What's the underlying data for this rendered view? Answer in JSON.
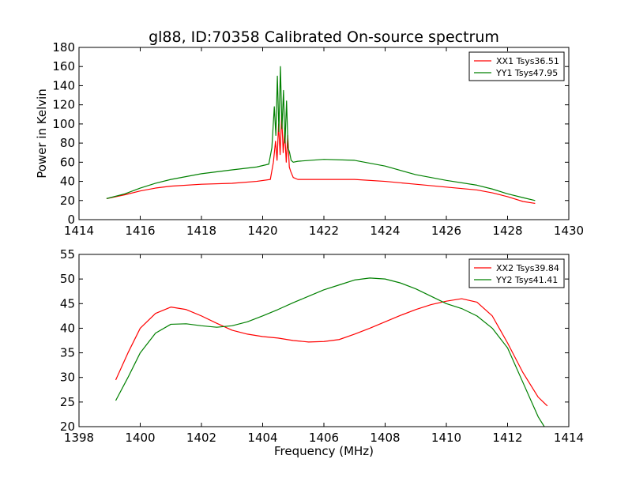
{
  "title": "gl88, ID:70358 Calibrated On-source spectrum",
  "colors": {
    "xx": "#ff0000",
    "yy": "#008000"
  },
  "chart_data": [
    {
      "type": "line",
      "ylabel": "Power in Kelvin",
      "xlabel": "",
      "xlim": [
        1414,
        1430
      ],
      "ylim": [
        0,
        180
      ],
      "xticks": [
        1414,
        1416,
        1418,
        1420,
        1422,
        1424,
        1426,
        1428,
        1430
      ],
      "yticks": [
        0,
        20,
        40,
        60,
        80,
        100,
        120,
        140,
        160,
        180
      ],
      "legend_position": "top-right",
      "series": [
        {
          "name": "XX1 Tsys36.51",
          "color": "#ff0000",
          "x": [
            1414.9,
            1415.5,
            1416,
            1416.5,
            1417,
            1418,
            1419,
            1419.8,
            1420.25,
            1420.35,
            1420.42,
            1420.47,
            1420.52,
            1420.57,
            1420.62,
            1420.67,
            1420.72,
            1420.77,
            1420.82,
            1420.87,
            1420.92,
            1421.0,
            1421.15,
            1422,
            1423,
            1424,
            1425,
            1426,
            1427,
            1427.5,
            1428,
            1428.5,
            1428.9
          ],
          "y": [
            22,
            26,
            30,
            33,
            35,
            37,
            38,
            40,
            42,
            60,
            82,
            62,
            100,
            68,
            110,
            70,
            92,
            60,
            88,
            55,
            50,
            44,
            42,
            42,
            42,
            40,
            37,
            34,
            31,
            28,
            24,
            19,
            17
          ]
        },
        {
          "name": "YY1 Tsys47.95",
          "color": "#008000",
          "x": [
            1414.9,
            1415.5,
            1416,
            1416.5,
            1417,
            1418,
            1419,
            1419.8,
            1420.2,
            1420.3,
            1420.38,
            1420.43,
            1420.48,
            1420.53,
            1420.58,
            1420.63,
            1420.68,
            1420.73,
            1420.78,
            1420.83,
            1420.88,
            1420.93,
            1421.0,
            1421.15,
            1422,
            1423,
            1424,
            1425,
            1426,
            1427,
            1427.5,
            1428,
            1428.5,
            1428.9
          ],
          "y": [
            22,
            27,
            33,
            38,
            42,
            48,
            52,
            55,
            58,
            75,
            118,
            88,
            150,
            92,
            160,
            95,
            135,
            80,
            124,
            75,
            70,
            62,
            60,
            61,
            63,
            62,
            56,
            47,
            41,
            36,
            32,
            27,
            23,
            20
          ]
        }
      ]
    },
    {
      "type": "line",
      "ylabel": "",
      "xlabel": "Frequency (MHz)",
      "xlim": [
        1398,
        1414
      ],
      "ylim": [
        20,
        55
      ],
      "xticks": [
        1398,
        1400,
        1402,
        1404,
        1406,
        1408,
        1410,
        1412,
        1414
      ],
      "yticks": [
        20,
        25,
        30,
        35,
        40,
        45,
        50,
        55
      ],
      "legend_position": "top-right",
      "series": [
        {
          "name": "XX2 Tsys39.84",
          "color": "#ff0000",
          "x": [
            1399.2,
            1399.6,
            1400.0,
            1400.5,
            1401.0,
            1401.5,
            1402.0,
            1402.5,
            1403.0,
            1403.5,
            1404.0,
            1404.5,
            1405.0,
            1405.5,
            1406.0,
            1406.5,
            1407.0,
            1407.5,
            1408.0,
            1408.5,
            1409.0,
            1409.5,
            1410.0,
            1410.5,
            1411.0,
            1411.5,
            1412.0,
            1412.5,
            1413.0,
            1413.3
          ],
          "y": [
            29.5,
            35,
            40,
            43,
            44.3,
            43.8,
            42.5,
            41,
            39.6,
            38.8,
            38.3,
            38,
            37.5,
            37.2,
            37.3,
            37.7,
            38.8,
            40,
            41.3,
            42.6,
            43.8,
            44.8,
            45.5,
            46,
            45.3,
            42.5,
            37,
            31,
            26,
            24.2
          ]
        },
        {
          "name": "YY2 Tsys41.41",
          "color": "#008000",
          "x": [
            1399.2,
            1399.6,
            1400.0,
            1400.5,
            1401.0,
            1401.5,
            1402.0,
            1402.5,
            1403.0,
            1403.5,
            1404.0,
            1404.5,
            1405.0,
            1405.5,
            1406.0,
            1406.5,
            1407.0,
            1407.5,
            1408.0,
            1408.5,
            1409.0,
            1409.5,
            1410.0,
            1410.5,
            1411.0,
            1411.5,
            1412.0,
            1412.5,
            1413.0,
            1413.2
          ],
          "y": [
            25.3,
            30,
            35,
            39,
            40.8,
            40.9,
            40.5,
            40.2,
            40.5,
            41.3,
            42.5,
            43.8,
            45.2,
            46.5,
            47.8,
            48.8,
            49.8,
            50.2,
            50,
            49.2,
            48,
            46.5,
            45,
            44,
            42.5,
            40,
            36,
            29,
            22,
            20
          ]
        }
      ]
    }
  ]
}
